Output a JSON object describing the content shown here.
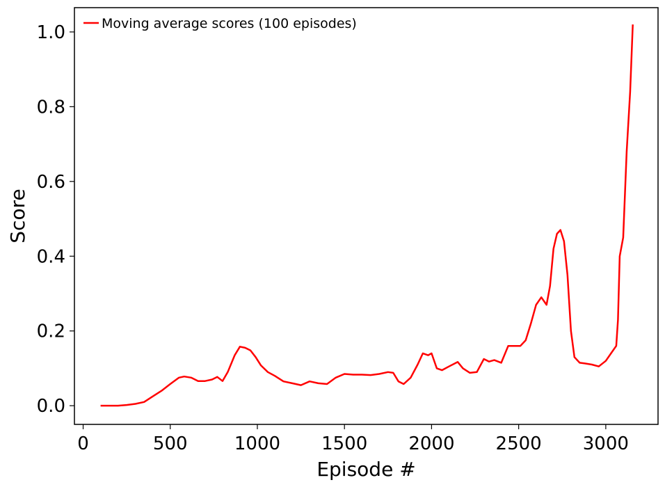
{
  "chart_data": {
    "type": "line",
    "title": "",
    "xlabel": "Episode #",
    "ylabel": "Score",
    "xlim": [
      -50,
      3300
    ],
    "ylim": [
      -0.05,
      1.065
    ],
    "x_ticks": [
      0,
      500,
      1000,
      1500,
      2000,
      2500,
      3000
    ],
    "x_tick_labels": [
      "0",
      "500",
      "1000",
      "1500",
      "2000",
      "2500",
      "3000"
    ],
    "y_ticks": [
      0.0,
      0.2,
      0.4,
      0.6,
      0.8,
      1.0
    ],
    "y_tick_labels": [
      "0.0",
      "0.2",
      "0.4",
      "0.6",
      "0.8",
      "1.0"
    ],
    "grid": false,
    "legend": {
      "position": "top-left",
      "entries": [
        "Moving average scores (100 episodes)"
      ]
    },
    "series": [
      {
        "name": "Moving average scores (100 episodes)",
        "color": "#ff0000",
        "x": [
          100,
          150,
          200,
          250,
          300,
          350,
          400,
          450,
          500,
          550,
          580,
          620,
          660,
          700,
          740,
          770,
          800,
          830,
          870,
          900,
          930,
          960,
          990,
          1020,
          1060,
          1100,
          1150,
          1200,
          1250,
          1300,
          1350,
          1400,
          1450,
          1500,
          1550,
          1600,
          1650,
          1700,
          1750,
          1780,
          1810,
          1840,
          1880,
          1920,
          1950,
          1980,
          2000,
          2030,
          2060,
          2100,
          2150,
          2180,
          2220,
          2260,
          2300,
          2330,
          2360,
          2400,
          2440,
          2470,
          2510,
          2540,
          2570,
          2600,
          2630,
          2660,
          2680,
          2700,
          2720,
          2740,
          2760,
          2780,
          2800,
          2820,
          2850,
          2880,
          2920,
          2960,
          3000,
          3030,
          3060,
          3070,
          3080,
          3100,
          3120,
          3140,
          3155
        ],
        "values": [
          0.0,
          0.0,
          0.0,
          0.002,
          0.005,
          0.01,
          0.025,
          0.04,
          0.058,
          0.075,
          0.078,
          0.075,
          0.066,
          0.066,
          0.07,
          0.077,
          0.066,
          0.09,
          0.135,
          0.158,
          0.155,
          0.148,
          0.13,
          0.108,
          0.09,
          0.08,
          0.065,
          0.06,
          0.055,
          0.065,
          0.06,
          0.058,
          0.075,
          0.085,
          0.083,
          0.083,
          0.082,
          0.085,
          0.09,
          0.088,
          0.065,
          0.058,
          0.075,
          0.11,
          0.14,
          0.135,
          0.14,
          0.1,
          0.095,
          0.105,
          0.117,
          0.1,
          0.088,
          0.09,
          0.125,
          0.118,
          0.122,
          0.115,
          0.16,
          0.16,
          0.16,
          0.175,
          0.22,
          0.27,
          0.29,
          0.27,
          0.32,
          0.42,
          0.46,
          0.47,
          0.44,
          0.35,
          0.2,
          0.13,
          0.115,
          0.113,
          0.11,
          0.105,
          0.12,
          0.14,
          0.16,
          0.23,
          0.4,
          0.45,
          0.68,
          0.84,
          1.02
        ]
      }
    ]
  }
}
